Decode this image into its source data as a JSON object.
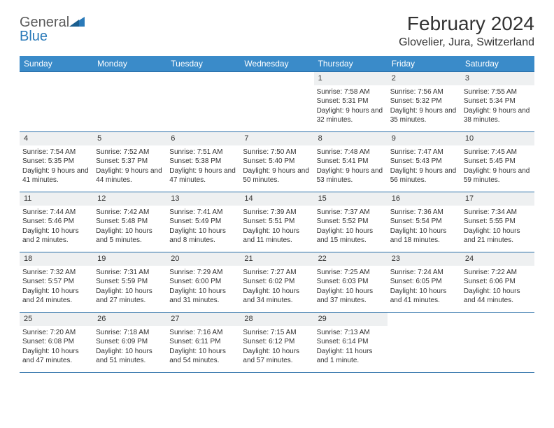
{
  "logo": {
    "word1": "General",
    "word2": "Blue"
  },
  "title": "February 2024",
  "location": "Glovelier, Jura, Switzerland",
  "colors": {
    "header_bg": "#3a8bc9",
    "border": "#2a6fa8",
    "daynum_bg": "#eef0f1",
    "text": "#333333",
    "blue_text": "#2a7ab9"
  },
  "dayHeaders": [
    "Sunday",
    "Monday",
    "Tuesday",
    "Wednesday",
    "Thursday",
    "Friday",
    "Saturday"
  ],
  "firstWeekday": 4,
  "daysInMonth": 29,
  "days": [
    {
      "n": 1,
      "sunrise": "7:58 AM",
      "sunset": "5:31 PM",
      "daylight": "9 hours and 32 minutes."
    },
    {
      "n": 2,
      "sunrise": "7:56 AM",
      "sunset": "5:32 PM",
      "daylight": "9 hours and 35 minutes."
    },
    {
      "n": 3,
      "sunrise": "7:55 AM",
      "sunset": "5:34 PM",
      "daylight": "9 hours and 38 minutes."
    },
    {
      "n": 4,
      "sunrise": "7:54 AM",
      "sunset": "5:35 PM",
      "daylight": "9 hours and 41 minutes."
    },
    {
      "n": 5,
      "sunrise": "7:52 AM",
      "sunset": "5:37 PM",
      "daylight": "9 hours and 44 minutes."
    },
    {
      "n": 6,
      "sunrise": "7:51 AM",
      "sunset": "5:38 PM",
      "daylight": "9 hours and 47 minutes."
    },
    {
      "n": 7,
      "sunrise": "7:50 AM",
      "sunset": "5:40 PM",
      "daylight": "9 hours and 50 minutes."
    },
    {
      "n": 8,
      "sunrise": "7:48 AM",
      "sunset": "5:41 PM",
      "daylight": "9 hours and 53 minutes."
    },
    {
      "n": 9,
      "sunrise": "7:47 AM",
      "sunset": "5:43 PM",
      "daylight": "9 hours and 56 minutes."
    },
    {
      "n": 10,
      "sunrise": "7:45 AM",
      "sunset": "5:45 PM",
      "daylight": "9 hours and 59 minutes."
    },
    {
      "n": 11,
      "sunrise": "7:44 AM",
      "sunset": "5:46 PM",
      "daylight": "10 hours and 2 minutes."
    },
    {
      "n": 12,
      "sunrise": "7:42 AM",
      "sunset": "5:48 PM",
      "daylight": "10 hours and 5 minutes."
    },
    {
      "n": 13,
      "sunrise": "7:41 AM",
      "sunset": "5:49 PM",
      "daylight": "10 hours and 8 minutes."
    },
    {
      "n": 14,
      "sunrise": "7:39 AM",
      "sunset": "5:51 PM",
      "daylight": "10 hours and 11 minutes."
    },
    {
      "n": 15,
      "sunrise": "7:37 AM",
      "sunset": "5:52 PM",
      "daylight": "10 hours and 15 minutes."
    },
    {
      "n": 16,
      "sunrise": "7:36 AM",
      "sunset": "5:54 PM",
      "daylight": "10 hours and 18 minutes."
    },
    {
      "n": 17,
      "sunrise": "7:34 AM",
      "sunset": "5:55 PM",
      "daylight": "10 hours and 21 minutes."
    },
    {
      "n": 18,
      "sunrise": "7:32 AM",
      "sunset": "5:57 PM",
      "daylight": "10 hours and 24 minutes."
    },
    {
      "n": 19,
      "sunrise": "7:31 AM",
      "sunset": "5:59 PM",
      "daylight": "10 hours and 27 minutes."
    },
    {
      "n": 20,
      "sunrise": "7:29 AM",
      "sunset": "6:00 PM",
      "daylight": "10 hours and 31 minutes."
    },
    {
      "n": 21,
      "sunrise": "7:27 AM",
      "sunset": "6:02 PM",
      "daylight": "10 hours and 34 minutes."
    },
    {
      "n": 22,
      "sunrise": "7:25 AM",
      "sunset": "6:03 PM",
      "daylight": "10 hours and 37 minutes."
    },
    {
      "n": 23,
      "sunrise": "7:24 AM",
      "sunset": "6:05 PM",
      "daylight": "10 hours and 41 minutes."
    },
    {
      "n": 24,
      "sunrise": "7:22 AM",
      "sunset": "6:06 PM",
      "daylight": "10 hours and 44 minutes."
    },
    {
      "n": 25,
      "sunrise": "7:20 AM",
      "sunset": "6:08 PM",
      "daylight": "10 hours and 47 minutes."
    },
    {
      "n": 26,
      "sunrise": "7:18 AM",
      "sunset": "6:09 PM",
      "daylight": "10 hours and 51 minutes."
    },
    {
      "n": 27,
      "sunrise": "7:16 AM",
      "sunset": "6:11 PM",
      "daylight": "10 hours and 54 minutes."
    },
    {
      "n": 28,
      "sunrise": "7:15 AM",
      "sunset": "6:12 PM",
      "daylight": "10 hours and 57 minutes."
    },
    {
      "n": 29,
      "sunrise": "7:13 AM",
      "sunset": "6:14 PM",
      "daylight": "11 hours and 1 minute."
    }
  ],
  "labels": {
    "sunrise": "Sunrise:",
    "sunset": "Sunset:",
    "daylight": "Daylight:"
  }
}
